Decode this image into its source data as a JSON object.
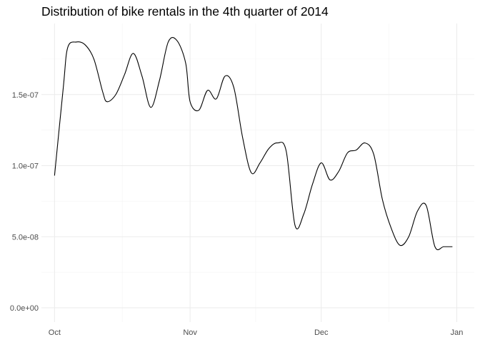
{
  "chart_data": {
    "type": "line",
    "title": "Distribution of bike rentals in the 4th quarter of 2014",
    "xlabel": "",
    "ylabel": "",
    "x_ticks": [
      {
        "date": "2014-10-01",
        "label": "Oct"
      },
      {
        "date": "2014-11-01",
        "label": "Nov"
      },
      {
        "date": "2014-12-01",
        "label": "Dec"
      },
      {
        "date": "2015-01-01",
        "label": "Jan"
      }
    ],
    "y_ticks": [
      {
        "value": 0,
        "label": "0.0e+00"
      },
      {
        "value": 5e-08,
        "label": "5.0e-08"
      },
      {
        "value": 1e-07,
        "label": "1.0e-07"
      },
      {
        "value": 1.5e-07,
        "label": "1.5e-07"
      }
    ],
    "xlim": [
      "2014-09-28",
      "2015-01-05"
    ],
    "ylim": [
      -1e-08,
      2e-07
    ],
    "grid": true,
    "legend": "none",
    "line_color": "#000000",
    "series": [
      {
        "x": [
          "2014-10-01",
          "2014-10-03",
          "2014-10-04",
          "2014-10-06",
          "2014-10-08",
          "2014-10-10",
          "2014-10-12",
          "2014-10-13",
          "2014-10-15",
          "2014-10-17",
          "2014-10-19",
          "2014-10-21",
          "2014-10-23",
          "2014-10-25",
          "2014-10-27",
          "2014-10-29",
          "2014-10-31",
          "2014-11-01",
          "2014-11-03",
          "2014-11-05",
          "2014-11-07",
          "2014-11-09",
          "2014-11-11",
          "2014-11-13",
          "2014-11-15",
          "2014-11-17",
          "2014-11-19",
          "2014-11-21",
          "2014-11-23",
          "2014-11-25",
          "2014-11-27",
          "2014-11-29",
          "2014-12-01",
          "2014-12-03",
          "2014-12-05",
          "2014-12-07",
          "2014-12-09",
          "2014-12-11",
          "2014-12-13",
          "2014-12-15",
          "2014-12-17",
          "2014-12-19",
          "2014-12-21",
          "2014-12-23",
          "2014-12-25",
          "2014-12-27",
          "2014-12-29",
          "2014-12-31"
        ],
        "y": [
          9.3e-08,
          1.55e-07,
          1.83e-07,
          1.87e-07,
          1.85e-07,
          1.75e-07,
          1.52e-07,
          1.45e-07,
          1.5e-07,
          1.64e-07,
          1.79e-07,
          1.63e-07,
          1.41e-07,
          1.6e-07,
          1.87e-07,
          1.88e-07,
          1.72e-07,
          1.45e-07,
          1.39e-07,
          1.53e-07,
          1.47e-07,
          1.63e-07,
          1.55e-07,
          1.2e-07,
          9.5e-08,
          1.02e-07,
          1.12e-07,
          1.16e-07,
          1.1e-07,
          5.8e-08,
          6.6e-08,
          8.7e-08,
          1.02e-07,
          9e-08,
          9.6e-08,
          1.09e-07,
          1.11e-07,
          1.16e-07,
          1.08e-07,
          7.6e-08,
          5.6e-08,
          4.4e-08,
          5e-08,
          6.8e-08,
          7.2e-08,
          4.3e-08,
          4.3e-08,
          4.3e-08
        ]
      }
    ]
  }
}
